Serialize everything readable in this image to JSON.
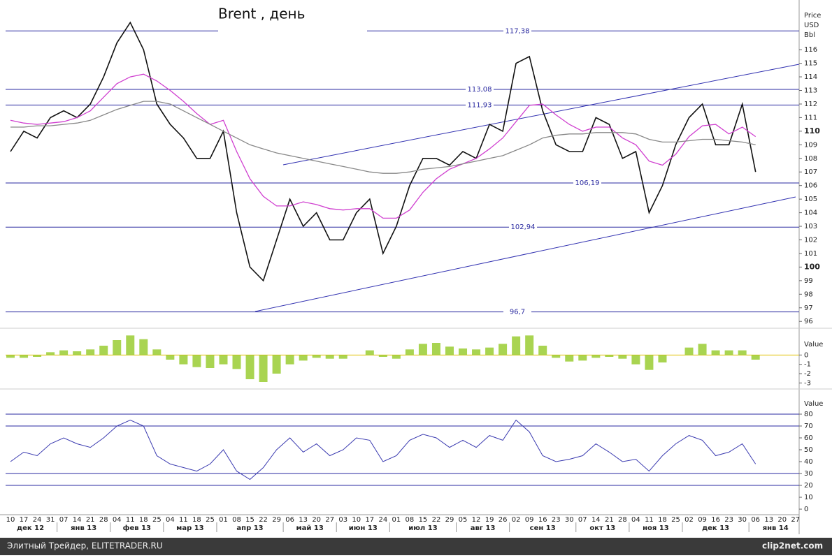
{
  "chart_data": [
    {
      "type": "line",
      "title": "Brent , день",
      "axis_label": [
        "Price",
        "USD",
        "Bbl"
      ],
      "ylim": [
        95.6,
        119.4
      ],
      "yticks": [
        96,
        97,
        98,
        99,
        100,
        101,
        102,
        103,
        104,
        105,
        106,
        107,
        108,
        109,
        110,
        111,
        112,
        113,
        114,
        115,
        116
      ],
      "levels": [
        {
          "value": 117.38,
          "label": "117,38"
        },
        {
          "value": 113.08,
          "label": "113,08"
        },
        {
          "value": 111.93,
          "label": "111,93"
        },
        {
          "value": 106.19,
          "label": "106,19"
        },
        {
          "value": 102.94,
          "label": "102,94"
        },
        {
          "value": 96.7,
          "label": "96,7"
        }
      ],
      "series": [
        {
          "color": "#111111",
          "values": [
            108.5,
            110,
            109.5,
            111,
            111.5,
            111,
            112,
            114,
            116.5,
            118,
            116,
            112,
            110.5,
            109.5,
            108,
            108,
            110,
            104,
            100,
            99,
            102,
            105,
            103,
            104,
            102,
            102,
            104,
            105,
            101,
            103,
            106,
            108,
            108,
            107.5,
            108.5,
            108,
            110.5,
            110,
            115,
            115.5,
            111.5,
            109,
            108.5,
            108.5,
            111,
            110.5,
            108,
            108.5,
            104,
            106,
            109,
            111,
            112,
            109,
            109,
            112,
            107
          ]
        },
        {
          "color": "#d040d0",
          "values": [
            110.8,
            110.6,
            110.5,
            110.6,
            110.7,
            111,
            111.5,
            112.5,
            113.5,
            114,
            114.2,
            113.7,
            113,
            112.2,
            111.3,
            110.5,
            110.8,
            108.5,
            106.5,
            105.2,
            104.5,
            104.5,
            104.8,
            104.6,
            104.3,
            104.2,
            104.3,
            104.3,
            103.6,
            103.6,
            104.2,
            105.5,
            106.5,
            107.2,
            107.6,
            108,
            108.7,
            109.5,
            110.7,
            111.9,
            112,
            111.2,
            110.5,
            110,
            110.3,
            110.3,
            109.5,
            109,
            107.8,
            107.5,
            108.3,
            109.6,
            110.4,
            110.5,
            109.8,
            110.3,
            109.6
          ]
        },
        {
          "color": "#888888",
          "values": [
            110.3,
            110.3,
            110.4,
            110.4,
            110.5,
            110.6,
            110.8,
            111.2,
            111.6,
            111.9,
            112.2,
            112.2,
            112,
            111.5,
            111,
            110.5,
            110,
            109.5,
            109,
            108.7,
            108.4,
            108.2,
            108,
            107.8,
            107.6,
            107.4,
            107.2,
            107,
            106.9,
            106.9,
            107,
            107.2,
            107.3,
            107.4,
            107.6,
            107.8,
            108,
            108.2,
            108.6,
            109,
            109.5,
            109.7,
            109.8,
            109.8,
            109.9,
            109.9,
            109.9,
            109.8,
            109.4,
            109.2,
            109.2,
            109.3,
            109.4,
            109.4,
            109.3,
            109.2,
            109
          ]
        }
      ]
    },
    {
      "type": "bar",
      "axis_label": "Value",
      "ylim": [
        -3.5,
        2.5
      ],
      "yticks": [
        0,
        -1,
        -2,
        -3
      ],
      "color": "#9acd32",
      "values": [
        -0.3,
        -0.3,
        -0.2,
        0.3,
        0.5,
        0.4,
        0.6,
        1,
        1.6,
        2.1,
        1.7,
        0.6,
        -0.5,
        -1,
        -1.3,
        -1.4,
        -1,
        -1.5,
        -2.6,
        -2.9,
        -2,
        -1,
        -0.6,
        -0.3,
        -0.4,
        -0.4,
        0,
        0.5,
        -0.2,
        -0.4,
        0.6,
        1.2,
        1.3,
        0.9,
        0.7,
        0.6,
        0.8,
        1.2,
        2,
        2.1,
        1,
        -0.3,
        -0.7,
        -0.6,
        -0.3,
        -0.2,
        -0.4,
        -1,
        -1.6,
        -0.8,
        0,
        0.8,
        1.2,
        0.5,
        0.5,
        0.5,
        -0.5
      ]
    },
    {
      "type": "line",
      "axis_label": "Value",
      "ylim": [
        -3.5,
        99.4
      ],
      "yticks": [
        0,
        10,
        20,
        30,
        40,
        50,
        60,
        70,
        80
      ],
      "levels": [
        80,
        70,
        30,
        20
      ],
      "color": "#3a3ab0",
      "values": [
        40,
        48,
        45,
        55,
        60,
        55,
        52,
        60,
        70,
        75,
        70,
        45,
        38,
        35,
        32,
        38,
        50,
        32,
        25,
        35,
        50,
        60,
        48,
        55,
        45,
        50,
        60,
        58,
        40,
        45,
        58,
        63,
        60,
        52,
        58,
        52,
        62,
        58,
        75,
        65,
        45,
        40,
        42,
        45,
        55,
        48,
        40,
        42,
        32,
        45,
        55,
        62,
        58,
        45,
        48,
        55,
        38
      ]
    }
  ],
  "x_axis": {
    "weeks": [
      "10",
      "17",
      "24",
      "31",
      "07",
      "14",
      "21",
      "28",
      "04",
      "11",
      "18",
      "25",
      "04",
      "11",
      "18",
      "25",
      "01",
      "08",
      "15",
      "22",
      "29",
      "06",
      "13",
      "20",
      "27",
      "03",
      "10",
      "17",
      "24",
      "01",
      "08",
      "15",
      "22",
      "29",
      "05",
      "12",
      "19",
      "26",
      "02",
      "09",
      "16",
      "23",
      "30",
      "07",
      "14",
      "21",
      "28",
      "04",
      "11",
      "18",
      "25",
      "02",
      "09",
      "16",
      "23",
      "30",
      "06",
      "13",
      "20",
      "27"
    ],
    "months": [
      "дек 12",
      "янв 13",
      "фев 13",
      "мар 13",
      "апр 13",
      "май 13",
      "июн 13",
      "июл 13",
      "авг 13",
      "сен 13",
      "окт 13",
      "ноя 13",
      "дек 13",
      "янв 14"
    ]
  },
  "footer": {
    "source": "Элитный Трейдер, ELITETRADER.RU",
    "logo": "clip2net.com"
  }
}
